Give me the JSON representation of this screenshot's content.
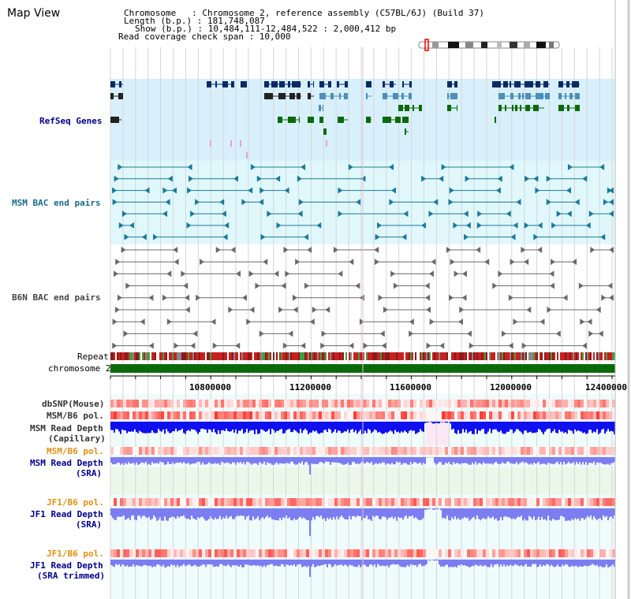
{
  "title": "Map View",
  "info": {
    "chromosome": "Chromosome   : Chromosome 2, reference assembly (C57BL/6J) (Build 37)",
    "length": "Length (b.p.) : 181,748,087",
    "show": "Show (b.p.) : 10,484,111-12,484,522 : 2,000,412 bp",
    "coverage": "Read coverage check span : 10,000"
  },
  "tracks": {
    "refseq": "RefSeq Genes",
    "msm_bac": "MSM BAC end pairs",
    "b6n_bac": "B6N BAC end pairs",
    "repeat": "Repeat",
    "chromosome": "chromosome 2",
    "dbsnp": "dbSNP(Mouse)",
    "msm_b6_pol": "MSM/B6 pol.",
    "msm_depth_cap_1": "MSM Read Depth",
    "msm_depth_cap_2": "(Capillary)",
    "msm_b6_pol_2": "MSM/B6 pol.",
    "msm_depth_sra_1": "MSM Read Depth",
    "msm_depth_sra_2": "(SRA)",
    "jf1_b6_pol": "JF1/B6 pol.",
    "jf1_depth_sra_1": "JF1 Read Depth",
    "jf1_depth_sra_2": "(SRA)",
    "jf1_b6_pol_2": "JF1/B6 pol.",
    "jf1_depth_trim_1": "JF1 Read Depth",
    "jf1_depth_trim_2": "(SRA trimmed)"
  },
  "axis": {
    "ticks": [
      "10800000",
      "11200000",
      "11600000",
      "12000000",
      "12400000"
    ]
  },
  "colors": {
    "refseq_bg": "#d8f0fc",
    "msm_bg": "#e0f8fc",
    "gene_navy": "#0a2a66",
    "gene_teal": "#4a90b8",
    "gene_green": "#0a6a0a",
    "bac_teal": "#1a7a9a",
    "bac_grey": "#6a6a6a",
    "chrom_green": "#0a6a0a",
    "blue_label": "#00008b",
    "orange_label": "#e09010",
    "grey_label": "#333333",
    "depth_dark": "#1010ee",
    "depth_light": "#7d7df2"
  }
}
